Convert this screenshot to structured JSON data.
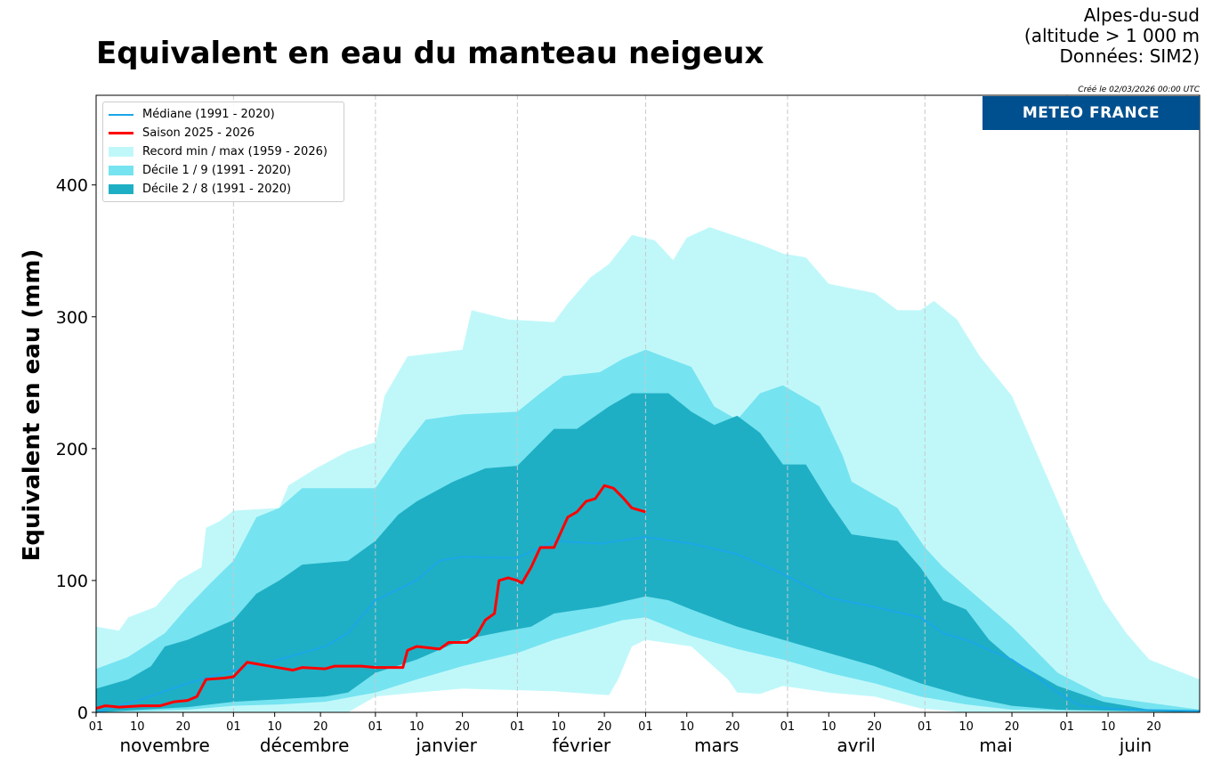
{
  "header": {
    "title": "Equivalent en eau du manteau neigeux",
    "region": "Alpes-du-sud",
    "altitude": "(altitude > 1 000 m",
    "source": "Données: SIM2)",
    "created": "Créé le 02/03/2026 00:00 UTC",
    "logo": "METEO FRANCE"
  },
  "chart_data": {
    "type": "area",
    "title": "Equivalent en eau du manteau neigeux",
    "ylabel": "Equivalent en eau (mm)",
    "xlabel": "",
    "x_unit": "days since 1 November",
    "xlim": [
      0,
      241
    ],
    "ylim": [
      0,
      468
    ],
    "yticks": [
      0,
      100,
      200,
      300,
      400
    ],
    "day_ticks": [
      {
        "d": 0,
        "l": "01"
      },
      {
        "d": 9,
        "l": "10"
      },
      {
        "d": 19,
        "l": "20"
      },
      {
        "d": 30,
        "l": "01"
      },
      {
        "d": 39,
        "l": "10"
      },
      {
        "d": 49,
        "l": "20"
      },
      {
        "d": 61,
        "l": "01"
      },
      {
        "d": 70,
        "l": "10"
      },
      {
        "d": 80,
        "l": "20"
      },
      {
        "d": 92,
        "l": "01"
      },
      {
        "d": 101,
        "l": "10"
      },
      {
        "d": 111,
        "l": "20"
      },
      {
        "d": 120,
        "l": "01"
      },
      {
        "d": 129,
        "l": "10"
      },
      {
        "d": 139,
        "l": "20"
      },
      {
        "d": 151,
        "l": "01"
      },
      {
        "d": 160,
        "l": "10"
      },
      {
        "d": 170,
        "l": "20"
      },
      {
        "d": 181,
        "l": "01"
      },
      {
        "d": 190,
        "l": "10"
      },
      {
        "d": 200,
        "l": "20"
      },
      {
        "d": 212,
        "l": "01"
      },
      {
        "d": 221,
        "l": "10"
      },
      {
        "d": 231,
        "l": "20"
      }
    ],
    "months": [
      {
        "d": 15,
        "l": "novembre"
      },
      {
        "d": 45.5,
        "l": "décembre"
      },
      {
        "d": 76.5,
        "l": "janvier"
      },
      {
        "d": 106,
        "l": "février"
      },
      {
        "d": 135.5,
        "l": "mars"
      },
      {
        "d": 166,
        "l": "avril"
      },
      {
        "d": 196.5,
        "l": "mai"
      },
      {
        "d": 227,
        "l": "juin"
      }
    ],
    "legend_position": "top-left",
    "legend": [
      "Médiane (1991 - 2020)",
      "Saison 2025 - 2026",
      "Record min / max (1959 - 2026)",
      "Décile 1 / 9 (1991 - 2020)",
      "Décile 2 / 8 (1991 - 2020)"
    ],
    "colors": {
      "median": "#1aa7e8",
      "season": "#ff0000",
      "record": "#c0f8fa",
      "d19": "#76e3f0",
      "d28": "#1fafc4"
    },
    "record_max": [
      [
        0,
        65
      ],
      [
        5,
        62
      ],
      [
        7,
        72
      ],
      [
        13,
        80
      ],
      [
        18,
        100
      ],
      [
        23,
        110
      ],
      [
        24,
        140
      ],
      [
        27,
        145
      ],
      [
        30,
        153
      ],
      [
        40,
        155
      ],
      [
        42,
        172
      ],
      [
        48,
        185
      ],
      [
        55,
        198
      ],
      [
        61,
        205
      ],
      [
        63,
        240
      ],
      [
        68,
        270
      ],
      [
        80,
        275
      ],
      [
        82,
        305
      ],
      [
        90,
        298
      ],
      [
        100,
        296
      ],
      [
        103,
        310
      ],
      [
        108,
        330
      ],
      [
        112,
        340
      ],
      [
        117,
        362
      ],
      [
        122,
        358
      ],
      [
        126,
        343
      ],
      [
        129,
        360
      ],
      [
        134,
        368
      ],
      [
        145,
        355
      ],
      [
        150,
        348
      ],
      [
        155,
        345
      ],
      [
        160,
        325
      ],
      [
        170,
        318
      ],
      [
        175,
        305
      ],
      [
        180,
        305
      ],
      [
        183,
        312
      ],
      [
        188,
        298
      ],
      [
        193,
        270
      ],
      [
        200,
        240
      ],
      [
        205,
        200
      ],
      [
        210,
        160
      ],
      [
        215,
        120
      ],
      [
        220,
        85
      ],
      [
        225,
        60
      ],
      [
        230,
        40
      ],
      [
        241,
        25
      ]
    ],
    "record_min": [
      [
        0,
        0
      ],
      [
        55,
        0
      ],
      [
        61,
        12
      ],
      [
        70,
        15
      ],
      [
        80,
        18
      ],
      [
        100,
        16
      ],
      [
        112,
        13
      ],
      [
        114,
        25
      ],
      [
        117,
        50
      ],
      [
        120,
        55
      ],
      [
        130,
        50
      ],
      [
        138,
        25
      ],
      [
        140,
        15
      ],
      [
        145,
        14
      ],
      [
        150,
        20
      ],
      [
        160,
        15
      ],
      [
        170,
        12
      ],
      [
        180,
        3
      ],
      [
        190,
        0
      ],
      [
        241,
        0
      ]
    ],
    "decile9": [
      [
        0,
        33
      ],
      [
        7,
        42
      ],
      [
        15,
        60
      ],
      [
        20,
        80
      ],
      [
        25,
        98
      ],
      [
        30,
        115
      ],
      [
        35,
        148
      ],
      [
        40,
        155
      ],
      [
        45,
        170
      ],
      [
        61,
        170
      ],
      [
        67,
        200
      ],
      [
        72,
        222
      ],
      [
        80,
        226
      ],
      [
        92,
        228
      ],
      [
        97,
        242
      ],
      [
        102,
        255
      ],
      [
        110,
        258
      ],
      [
        115,
        268
      ],
      [
        120,
        275
      ],
      [
        130,
        262
      ],
      [
        135,
        232
      ],
      [
        140,
        222
      ],
      [
        145,
        242
      ],
      [
        150,
        248
      ],
      [
        158,
        232
      ],
      [
        163,
        195
      ],
      [
        165,
        175
      ],
      [
        175,
        155
      ],
      [
        181,
        125
      ],
      [
        185,
        110
      ],
      [
        190,
        95
      ],
      [
        200,
        65
      ],
      [
        210,
        30
      ],
      [
        220,
        12
      ],
      [
        241,
        2
      ]
    ],
    "decile1": [
      [
        0,
        0
      ],
      [
        20,
        2
      ],
      [
        30,
        5
      ],
      [
        40,
        6
      ],
      [
        50,
        8
      ],
      [
        61,
        15
      ],
      [
        70,
        25
      ],
      [
        80,
        35
      ],
      [
        92,
        45
      ],
      [
        100,
        55
      ],
      [
        110,
        65
      ],
      [
        115,
        70
      ],
      [
        120,
        72
      ],
      [
        130,
        58
      ],
      [
        140,
        48
      ],
      [
        150,
        40
      ],
      [
        160,
        30
      ],
      [
        170,
        22
      ],
      [
        180,
        12
      ],
      [
        190,
        6
      ],
      [
        200,
        2
      ],
      [
        241,
        0
      ]
    ],
    "decile8": [
      [
        0,
        18
      ],
      [
        7,
        25
      ],
      [
        12,
        35
      ],
      [
        15,
        50
      ],
      [
        20,
        55
      ],
      [
        30,
        70
      ],
      [
        35,
        90
      ],
      [
        40,
        100
      ],
      [
        45,
        112
      ],
      [
        55,
        115
      ],
      [
        59,
        125
      ],
      [
        61,
        130
      ],
      [
        66,
        150
      ],
      [
        70,
        160
      ],
      [
        78,
        175
      ],
      [
        85,
        185
      ],
      [
        92,
        187
      ],
      [
        100,
        215
      ],
      [
        105,
        215
      ],
      [
        112,
        232
      ],
      [
        117,
        242
      ],
      [
        125,
        242
      ],
      [
        130,
        228
      ],
      [
        135,
        218
      ],
      [
        140,
        225
      ],
      [
        145,
        212
      ],
      [
        150,
        188
      ],
      [
        155,
        188
      ],
      [
        160,
        160
      ],
      [
        165,
        135
      ],
      [
        175,
        130
      ],
      [
        180,
        110
      ],
      [
        185,
        85
      ],
      [
        190,
        78
      ],
      [
        195,
        55
      ],
      [
        200,
        40
      ],
      [
        210,
        20
      ],
      [
        220,
        8
      ],
      [
        230,
        2
      ],
      [
        241,
        0
      ]
    ],
    "decile2": [
      [
        0,
        0
      ],
      [
        10,
        2
      ],
      [
        20,
        4
      ],
      [
        30,
        8
      ],
      [
        40,
        10
      ],
      [
        50,
        12
      ],
      [
        55,
        15
      ],
      [
        61,
        30
      ],
      [
        70,
        40
      ],
      [
        80,
        55
      ],
      [
        90,
        62
      ],
      [
        95,
        65
      ],
      [
        100,
        75
      ],
      [
        110,
        80
      ],
      [
        120,
        88
      ],
      [
        125,
        85
      ],
      [
        130,
        78
      ],
      [
        140,
        65
      ],
      [
        145,
        60
      ],
      [
        150,
        55
      ],
      [
        155,
        50
      ],
      [
        160,
        45
      ],
      [
        170,
        35
      ],
      [
        180,
        22
      ],
      [
        190,
        12
      ],
      [
        200,
        5
      ],
      [
        210,
        2
      ],
      [
        241,
        0
      ]
    ],
    "median": [
      [
        0,
        0
      ],
      [
        10,
        10
      ],
      [
        20,
        22
      ],
      [
        30,
        32
      ],
      [
        40,
        40
      ],
      [
        50,
        50
      ],
      [
        55,
        60
      ],
      [
        61,
        85
      ],
      [
        70,
        100
      ],
      [
        75,
        115
      ],
      [
        80,
        118
      ],
      [
        92,
        117
      ],
      [
        100,
        130
      ],
      [
        110,
        128
      ],
      [
        120,
        133
      ],
      [
        130,
        128
      ],
      [
        140,
        120
      ],
      [
        150,
        105
      ],
      [
        160,
        87
      ],
      [
        170,
        80
      ],
      [
        180,
        72
      ],
      [
        185,
        60
      ],
      [
        190,
        55
      ],
      [
        200,
        40
      ],
      [
        205,
        28
      ],
      [
        210,
        15
      ],
      [
        215,
        5
      ],
      [
        225,
        2
      ],
      [
        241,
        1
      ]
    ],
    "season": [
      [
        0,
        3
      ],
      [
        2,
        5
      ],
      [
        5,
        4
      ],
      [
        10,
        5
      ],
      [
        14,
        5
      ],
      [
        17,
        8
      ],
      [
        20,
        9
      ],
      [
        22,
        12
      ],
      [
        24,
        25
      ],
      [
        28,
        26
      ],
      [
        30,
        27
      ],
      [
        33,
        38
      ],
      [
        38,
        35
      ],
      [
        43,
        32
      ],
      [
        45,
        34
      ],
      [
        50,
        33
      ],
      [
        52,
        35
      ],
      [
        58,
        35
      ],
      [
        61,
        34
      ],
      [
        67,
        34
      ],
      [
        68,
        47
      ],
      [
        70,
        50
      ],
      [
        75,
        48
      ],
      [
        77,
        53
      ],
      [
        81,
        53
      ],
      [
        83,
        58
      ],
      [
        85,
        70
      ],
      [
        87,
        75
      ],
      [
        88,
        100
      ],
      [
        90,
        102
      ],
      [
        92,
        100
      ],
      [
        93,
        98
      ],
      [
        95,
        110
      ],
      [
        97,
        125
      ],
      [
        100,
        125
      ],
      [
        103,
        148
      ],
      [
        105,
        152
      ],
      [
        107,
        160
      ],
      [
        109,
        162
      ],
      [
        111,
        172
      ],
      [
        113,
        170
      ],
      [
        115,
        163
      ],
      [
        117,
        155
      ],
      [
        120,
        152
      ]
    ]
  }
}
